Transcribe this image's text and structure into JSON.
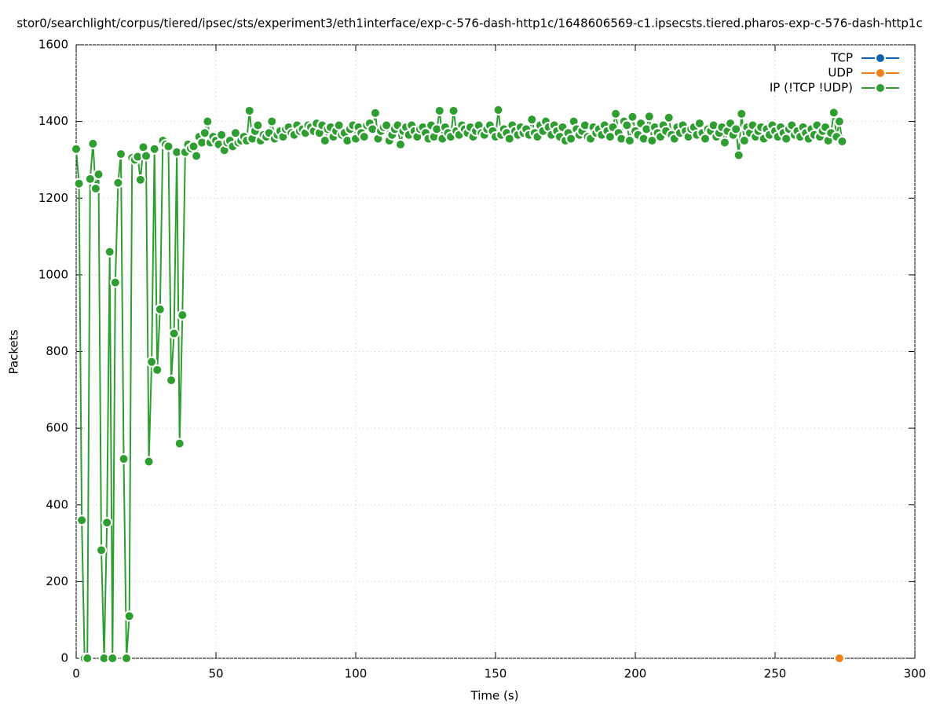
{
  "chart_data": {
    "type": "line",
    "title": "stor0/searchlight/corpus/tiered/ipsec/sts/experiment3/eth1interface/exp-c-576-dash-http1c/1648606569-c1.ipsecsts.tiered.pharos-exp-c-576-dash-http1c",
    "x_label": "Time (s)",
    "y_label": "Packets",
    "xlim": [
      0,
      300
    ],
    "xticks": [
      0,
      50,
      100,
      150,
      200,
      250,
      300
    ],
    "ylim": [
      0,
      1600
    ],
    "yticks": [
      0,
      200,
      400,
      600,
      800,
      1000,
      1200,
      1400,
      1600
    ],
    "grid": true,
    "legend": "top-right",
    "series": [
      {
        "name": "TCP",
        "color": "#0f62ad",
        "x": [],
        "values": []
      },
      {
        "name": "UDP",
        "color": "#f57f17",
        "x": [
          273
        ],
        "values": [
          0
        ]
      },
      {
        "name": "IP (!TCP  !UDP)",
        "color": "#2e9e31",
        "x": [
          0,
          1,
          2,
          3,
          4,
          5,
          6,
          7,
          8,
          9,
          10,
          11,
          12,
          13,
          14,
          15,
          16,
          17,
          18,
          19,
          20,
          21,
          22,
          23,
          24,
          25,
          26,
          27,
          28,
          29,
          30,
          31,
          32,
          33,
          34,
          35,
          36,
          37,
          38,
          39,
          40,
          41,
          42,
          43,
          44,
          45,
          46,
          47,
          48,
          49,
          50,
          51,
          52,
          53,
          54,
          55,
          56,
          57,
          58,
          59,
          60,
          61,
          62,
          63,
          64,
          65,
          66,
          67,
          68,
          69,
          70,
          71,
          72,
          73,
          74,
          75,
          76,
          77,
          78,
          79,
          80,
          81,
          82,
          83,
          84,
          85,
          86,
          87,
          88,
          89,
          90,
          91,
          92,
          93,
          94,
          95,
          96,
          97,
          98,
          99,
          100,
          101,
          102,
          103,
          104,
          105,
          106,
          107,
          108,
          109,
          110,
          111,
          112,
          113,
          114,
          115,
          116,
          117,
          118,
          119,
          120,
          121,
          122,
          123,
          124,
          125,
          126,
          127,
          128,
          129,
          130,
          131,
          132,
          133,
          134,
          135,
          136,
          137,
          138,
          139,
          140,
          141,
          142,
          143,
          144,
          145,
          146,
          147,
          148,
          149,
          150,
          151,
          152,
          153,
          154,
          155,
          156,
          157,
          158,
          159,
          160,
          161,
          162,
          163,
          164,
          165,
          166,
          167,
          168,
          169,
          170,
          171,
          172,
          173,
          174,
          175,
          176,
          177,
          178,
          179,
          180,
          181,
          182,
          183,
          184,
          185,
          186,
          187,
          188,
          189,
          190,
          191,
          192,
          193,
          194,
          195,
          196,
          197,
          198,
          199,
          200,
          201,
          202,
          203,
          204,
          205,
          206,
          207,
          208,
          209,
          210,
          211,
          212,
          213,
          214,
          215,
          216,
          217,
          218,
          219,
          220,
          221,
          222,
          223,
          224,
          225,
          226,
          227,
          228,
          229,
          230,
          231,
          232,
          233,
          234,
          235,
          236,
          237,
          238,
          239,
          240,
          241,
          242,
          243,
          244,
          245,
          246,
          247,
          248,
          249,
          250,
          251,
          252,
          253,
          254,
          255,
          256,
          257,
          258,
          259,
          260,
          261,
          262,
          263,
          264,
          265,
          266,
          267,
          268,
          269,
          270,
          271,
          272,
          273,
          274
        ],
        "values": [
          1328,
          1238,
          360,
          0,
          0,
          1250,
          1342,
          1225,
          1262,
          282,
          0,
          354,
          1060,
          0,
          980,
          1240,
          1315,
          520,
          0,
          110,
          1305,
          1300,
          1308,
          1248,
          1333,
          1310,
          513,
          773,
          1328,
          752,
          910,
          1350,
          1340,
          1335,
          725,
          847,
          1320,
          560,
          895,
          1320,
          1340,
          1330,
          1335,
          1310,
          1360,
          1345,
          1370,
          1400,
          1345,
          1360,
          1350,
          1340,
          1365,
          1325,
          1345,
          1350,
          1335,
          1370,
          1345,
          1350,
          1360,
          1350,
          1428,
          1355,
          1375,
          1390,
          1350,
          1365,
          1360,
          1370,
          1400,
          1355,
          1365,
          1375,
          1360,
          1380,
          1385,
          1370,
          1365,
          1390,
          1375,
          1380,
          1370,
          1390,
          1385,
          1375,
          1395,
          1370,
          1390,
          1350,
          1380,
          1385,
          1360,
          1375,
          1390,
          1365,
          1370,
          1350,
          1380,
          1390,
          1355,
          1385,
          1370,
          1360,
          1390,
          1395,
          1380,
          1422,
          1355,
          1375,
          1385,
          1390,
          1350,
          1365,
          1380,
          1390,
          1340,
          1375,
          1385,
          1365,
          1390,
          1375,
          1360,
          1380,
          1385,
          1370,
          1355,
          1390,
          1360,
          1380,
          1428,
          1355,
          1385,
          1370,
          1360,
          1428,
          1375,
          1365,
          1390,
          1380,
          1370,
          1385,
          1360,
          1375,
          1390,
          1370,
          1365,
          1380,
          1390,
          1375,
          1360,
          1430,
          1365,
          1380,
          1370,
          1355,
          1390,
          1375,
          1365,
          1385,
          1370,
          1380,
          1365,
          1405,
          1370,
          1360,
          1390,
          1375,
          1400,
          1385,
          1365,
          1390,
          1375,
          1360,
          1385,
          1350,
          1370,
          1355,
          1400,
          1380,
          1365,
          1375,
          1390,
          1360,
          1355,
          1385,
          1370,
          1380,
          1365,
          1390,
          1375,
          1360,
          1385,
          1420,
          1370,
          1355,
          1400,
          1390,
          1350,
          1412,
          1375,
          1365,
          1395,
          1355,
          1380,
          1413,
          1350,
          1385,
          1370,
          1360,
          1390,
          1375,
          1410,
          1365,
          1355,
          1385,
          1370,
          1390,
          1375,
          1360,
          1380,
          1385,
          1365,
          1395,
          1370,
          1355,
          1380,
          1375,
          1390,
          1360,
          1370,
          1385,
          1345,
          1375,
          1395,
          1365,
          1380,
          1312,
          1420,
          1350,
          1385,
          1370,
          1390,
          1360,
          1375,
          1385,
          1355,
          1380,
          1365,
          1390,
          1375,
          1360,
          1385,
          1370,
          1355,
          1380,
          1390,
          1365,
          1375,
          1360,
          1385,
          1370,
          1355,
          1380,
          1365,
          1390,
          1360,
          1375,
          1385,
          1350,
          1370,
          1423,
          1360,
          1400,
          1348
        ]
      }
    ]
  }
}
